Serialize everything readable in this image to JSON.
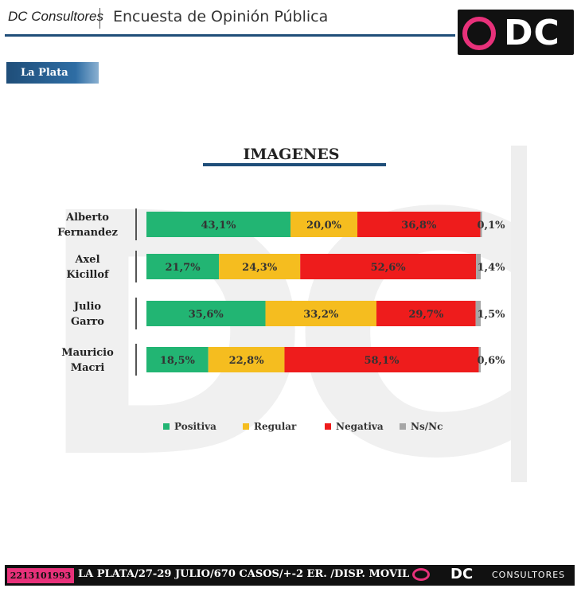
{
  "header": {
    "brand": "DC Consultores",
    "title": "Encuesta de Opinión Pública",
    "logo_text": "DC",
    "city_tab": "La Plata"
  },
  "colors": {
    "positiva": "#22b573",
    "regular": "#f5bd1f",
    "negativa": "#ee1c1c",
    "nsnc": "#a6a6a6",
    "accent": "#1f4e79",
    "pink": "#e8317a"
  },
  "chart_data": {
    "type": "bar",
    "orientation": "horizontal",
    "stacked": true,
    "title": "IMAGENES",
    "categories": [
      "Alberto Fernandez",
      "Axel Kicillof",
      "Julio Garro",
      "Mauricio Macri"
    ],
    "category_lines": [
      [
        "Alberto",
        "Fernandez"
      ],
      [
        "Axel",
        "Kicillof"
      ],
      [
        "Julio",
        "Garro"
      ],
      [
        "Mauricio",
        "Macri"
      ]
    ],
    "series": [
      {
        "name": "Positiva",
        "values": [
          43.1,
          21.7,
          35.6,
          18.5
        ],
        "labels": [
          "43,1%",
          "21,7%",
          "35,6%",
          "18,5%"
        ]
      },
      {
        "name": "Regular",
        "values": [
          20.0,
          24.3,
          33.2,
          22.8
        ],
        "labels": [
          "20,0%",
          "24,3%",
          "33,2%",
          "22,8%"
        ]
      },
      {
        "name": "Negativa",
        "values": [
          36.8,
          52.6,
          29.7,
          58.1
        ],
        "labels": [
          "36,8%",
          "52,6%",
          "29,7%",
          "58,1%"
        ]
      },
      {
        "name": "Ns/Nc",
        "values": [
          0.1,
          1.4,
          1.5,
          0.6
        ],
        "labels": [
          "0,1%",
          "1,4%",
          "1,5%",
          "0,6%"
        ]
      }
    ],
    "xlim": [
      0,
      100
    ],
    "legend_position": "bottom",
    "grid": false
  },
  "footer": {
    "phone": "2213101993",
    "info": "LA PLATA/27-29 JULIO/670 CASOS/+-2 ER. /DISP. MOVIL",
    "brand_dc": "DC",
    "brand_consultores": "CONSULTORES"
  }
}
